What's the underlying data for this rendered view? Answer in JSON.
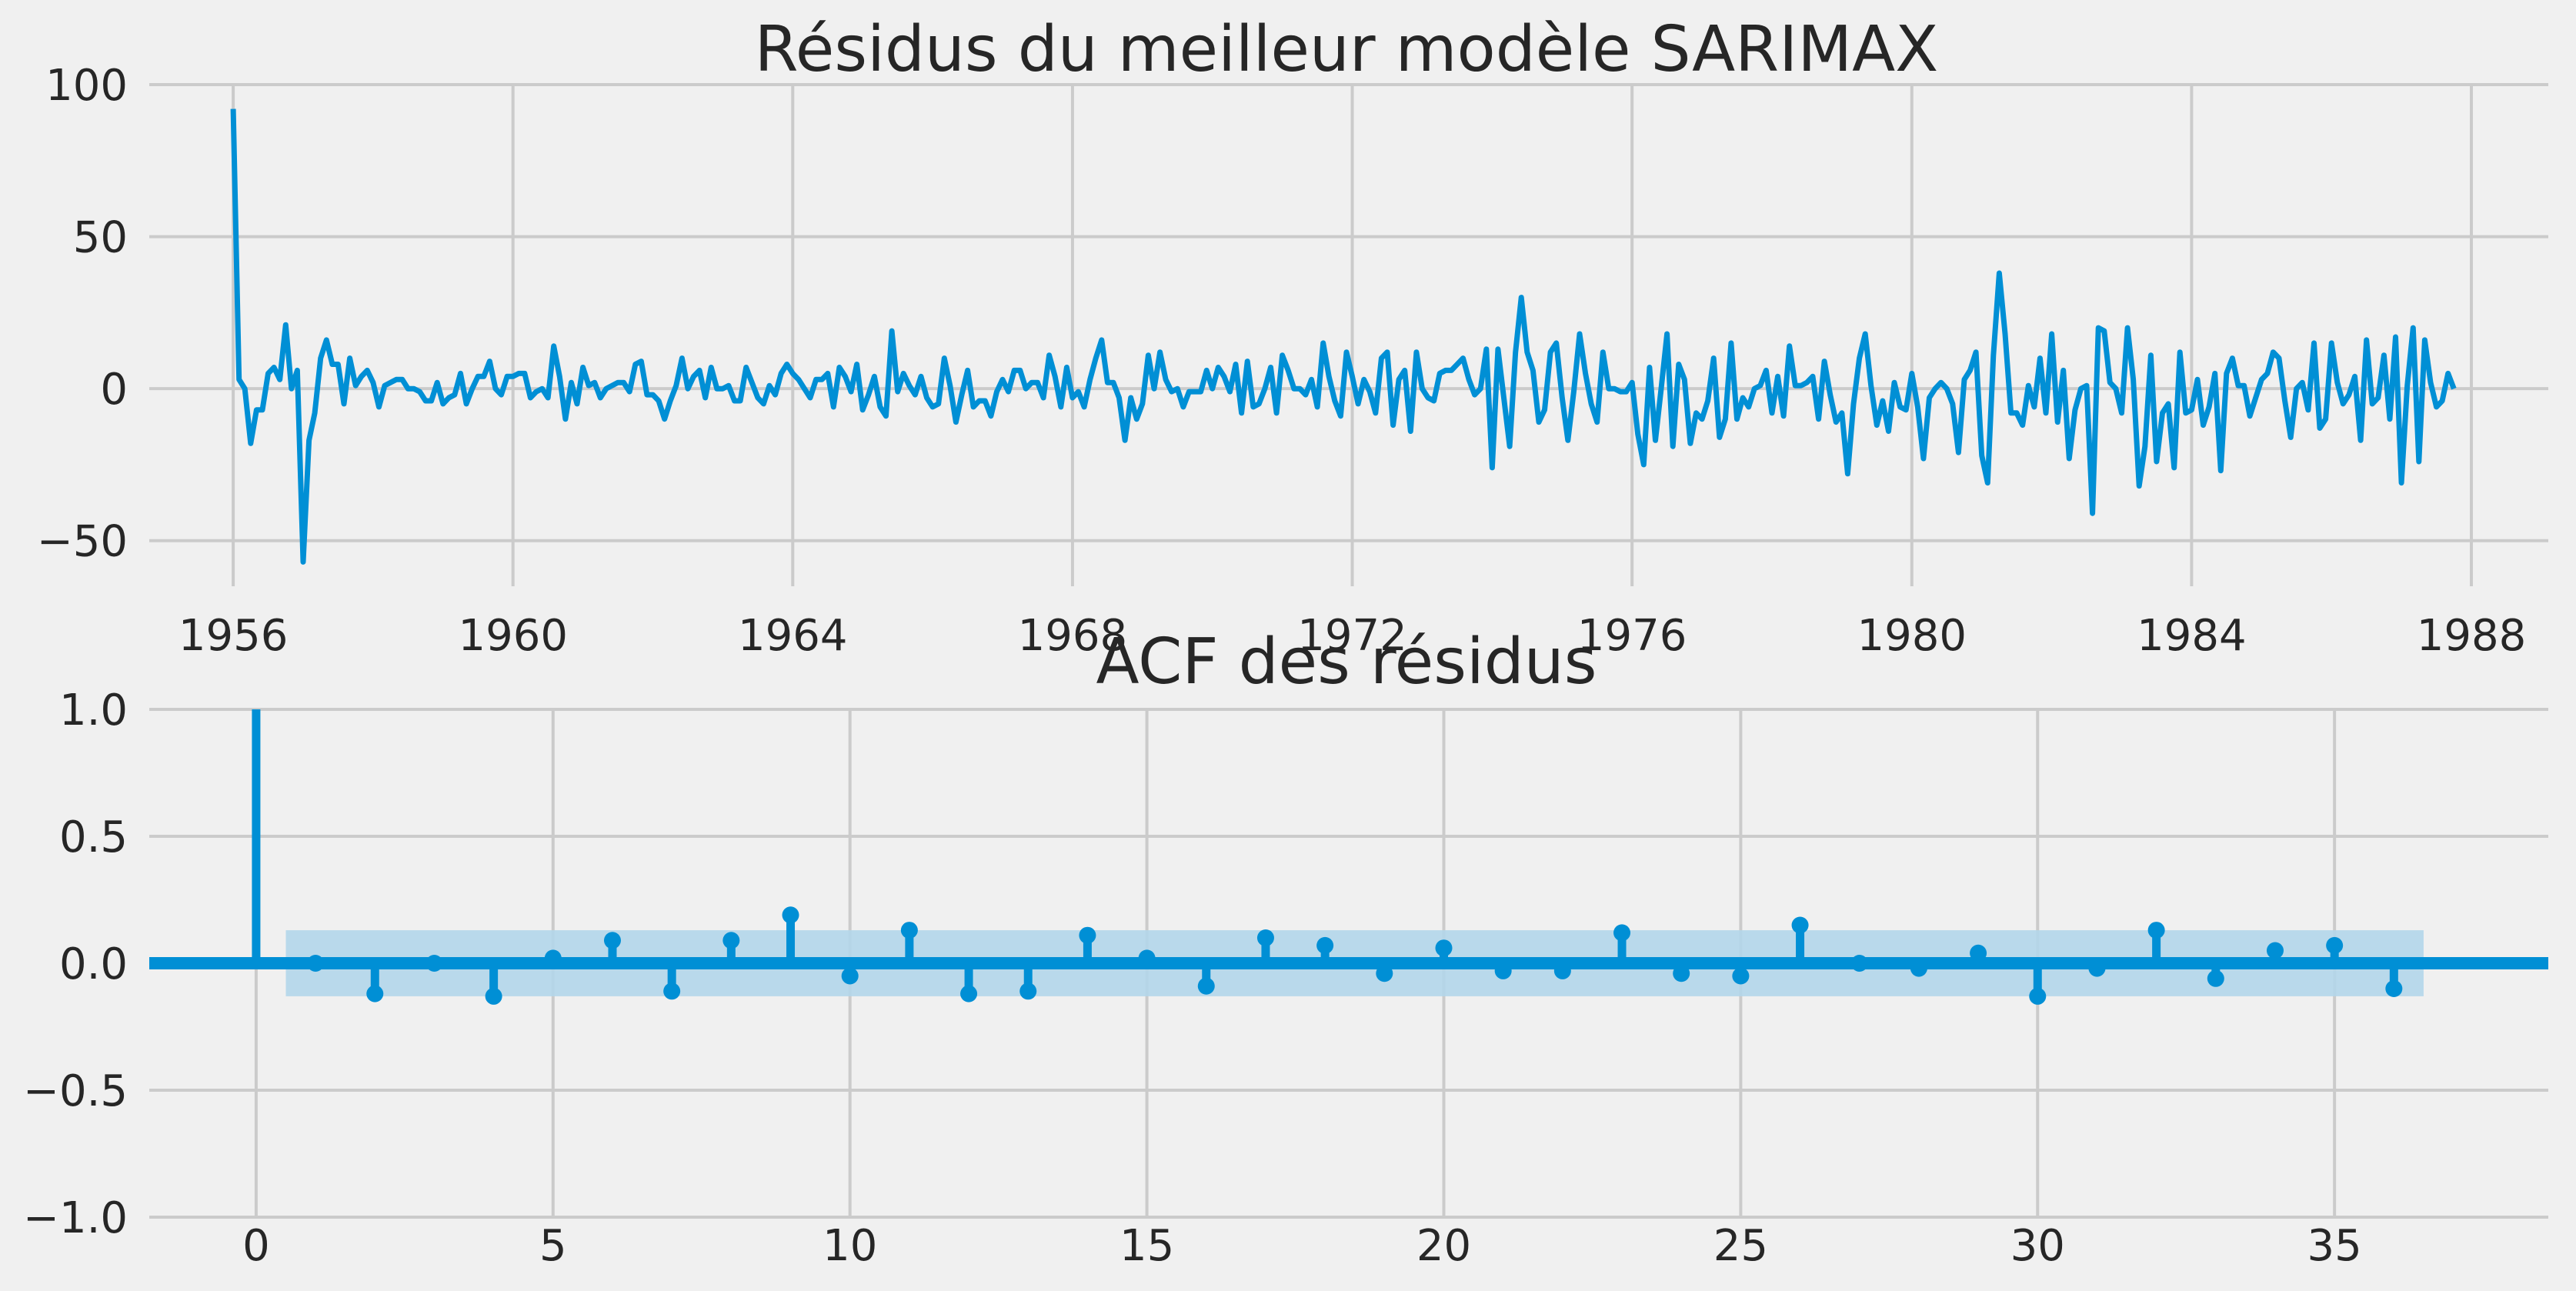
{
  "colors": {
    "background": "#f0f0f0",
    "grid": "#cbcbcb",
    "line": "#008fd5",
    "band": "#b3d6ea"
  },
  "chart_data": [
    {
      "type": "line",
      "title": "Résidus du meilleur modèle SARIMAX",
      "xlabel": "",
      "ylabel": "",
      "x_start": "1956-01",
      "x_step": "month",
      "xlim": [
        1954.8,
        1989.1
      ],
      "ylim": [
        -65,
        100
      ],
      "xticks": [
        1956,
        1960,
        1964,
        1968,
        1972,
        1976,
        1980,
        1984,
        1988
      ],
      "xtick_labels": [
        "1956",
        "1960",
        "1964",
        "1968",
        "1972",
        "1976",
        "1980",
        "1984",
        "1988"
      ],
      "yticks": [
        100,
        50,
        0,
        -50
      ],
      "ytick_labels": [
        "100",
        "50",
        "0",
        "−50"
      ],
      "grid": true,
      "series": [
        {
          "values": [
            92,
            3,
            0,
            -18,
            -7,
            -7,
            5,
            7,
            3,
            21,
            0,
            6,
            -57,
            -17,
            -8,
            10,
            16,
            8,
            8,
            -5,
            10,
            1,
            4,
            6,
            2,
            -6,
            1,
            2,
            3,
            3,
            0,
            0,
            -1,
            -4,
            -4,
            2,
            -5,
            -3,
            -2,
            5,
            -5,
            0,
            4,
            4,
            9,
            0,
            -2,
            4,
            4,
            5,
            5,
            -3,
            -1,
            0,
            -3,
            14,
            4,
            -10,
            2,
            -5,
            7,
            1,
            2,
            -3,
            0,
            1,
            2,
            2,
            -1,
            8,
            9,
            -2,
            -2,
            -4,
            -10,
            -4,
            1,
            10,
            0,
            4,
            6,
            -3,
            7,
            0,
            0,
            1,
            -4,
            -4,
            7,
            2,
            -3,
            -5,
            1,
            -2,
            5,
            8,
            5,
            3,
            0,
            -3,
            3,
            3,
            5,
            -6,
            7,
            4,
            -1,
            8,
            -7,
            -2,
            4,
            -6,
            -9,
            19,
            -1,
            5,
            1,
            -2,
            4,
            -3,
            -6,
            -5,
            10,
            1,
            -11,
            -2,
            6,
            -6,
            -4,
            -4,
            -9,
            -1,
            3,
            -1,
            6,
            6,
            0,
            2,
            2,
            -3,
            11,
            4,
            -6,
            7,
            -3,
            -1,
            -6,
            3,
            10,
            16,
            2,
            2,
            -3,
            -17,
            -3,
            -10,
            -5,
            11,
            0,
            12,
            3,
            -1,
            0,
            -6,
            -1,
            -1,
            -1,
            6,
            0,
            7,
            4,
            -1,
            8,
            -8,
            9,
            -6,
            -5,
            0,
            7,
            -8,
            11,
            6,
            0,
            0,
            -2,
            3,
            -6,
            15,
            4,
            -4,
            -9,
            12,
            4,
            -5,
            3,
            -1,
            -8,
            10,
            12,
            -12,
            3,
            6,
            -14,
            12,
            0,
            -3,
            -4,
            5,
            6,
            6,
            8,
            10,
            3,
            -2,
            0,
            13,
            -26,
            13,
            -3,
            -19,
            12,
            30,
            12,
            6,
            -11,
            -7,
            12,
            15,
            -3,
            -17,
            -1,
            18,
            5,
            -5,
            -11,
            12,
            0,
            0,
            -1,
            -1,
            2,
            -15,
            -25,
            7,
            -17,
            0,
            18,
            -19,
            8,
            3,
            -18,
            -8,
            -10,
            -4,
            10,
            -16,
            -10,
            15,
            -10,
            -3,
            -6,
            0,
            1,
            6,
            -8,
            4,
            -9,
            14,
            1,
            1,
            2,
            4,
            -10,
            9,
            -2,
            -11,
            -8,
            -28,
            -5,
            10,
            18,
            1,
            -12,
            -4,
            -14,
            2,
            -6,
            -7,
            5,
            -6,
            -23,
            -3,
            0,
            2,
            0,
            -5,
            -21,
            3,
            6,
            12,
            -22,
            -31,
            11,
            38,
            18,
            -8,
            -8,
            -12,
            1,
            -6,
            10,
            -8,
            18,
            -11,
            6,
            -23,
            -7,
            0,
            1,
            -41,
            20,
            19,
            2,
            0,
            -8,
            20,
            3,
            -32,
            -19,
            11,
            -24,
            -8,
            -5,
            -26,
            12,
            -8,
            -7,
            3,
            -12,
            -6,
            5,
            -27,
            5,
            10,
            1,
            1,
            -9,
            -3,
            3,
            5,
            12,
            10,
            -4,
            -16,
            0,
            2,
            -7,
            15,
            -13,
            -10,
            15,
            2,
            -5,
            -2,
            4,
            -17,
            16,
            -5,
            -3,
            11,
            -10,
            17,
            -31,
            1,
            20,
            -24,
            16,
            2,
            -6,
            -4,
            5,
            0
          ]
        }
      ]
    },
    {
      "type": "stem",
      "title": "ACF des résidus",
      "xlabel": "",
      "ylabel": "",
      "xlim": [
        -1.8,
        38.6
      ],
      "ylim": [
        -1.0,
        1.0
      ],
      "xticks": [
        0,
        5,
        10,
        15,
        20,
        25,
        30,
        35
      ],
      "xtick_labels": [
        "0",
        "5",
        "10",
        "15",
        "20",
        "25",
        "30",
        "35"
      ],
      "yticks": [
        1.0,
        0.5,
        0.0,
        -0.5,
        -1.0
      ],
      "ytick_labels": [
        "1.0",
        "0.5",
        "0.0",
        "−0.5",
        "−1.0"
      ],
      "grid": true,
      "lags": [
        0,
        1,
        2,
        3,
        4,
        5,
        6,
        7,
        8,
        9,
        10,
        11,
        12,
        13,
        14,
        15,
        16,
        17,
        18,
        19,
        20,
        21,
        22,
        23,
        24,
        25,
        26,
        27,
        28,
        29,
        30,
        31,
        32,
        33,
        34,
        35,
        36
      ],
      "values": [
        1.0,
        0.0,
        -0.12,
        0.0,
        -0.13,
        0.02,
        0.09,
        -0.11,
        0.09,
        0.19,
        -0.05,
        0.13,
        -0.12,
        -0.11,
        0.11,
        0.02,
        -0.09,
        0.1,
        0.07,
        -0.04,
        0.06,
        -0.03,
        -0.03,
        0.12,
        -0.04,
        -0.05,
        0.15,
        0.0,
        -0.02,
        0.04,
        -0.13,
        -0.02,
        0.13,
        -0.06,
        0.05,
        0.07,
        -0.1
      ],
      "confidence_band": {
        "lag_start": 0.5,
        "lag_end": 36.5,
        "start": 0.1,
        "end": 0.13
      }
    }
  ]
}
